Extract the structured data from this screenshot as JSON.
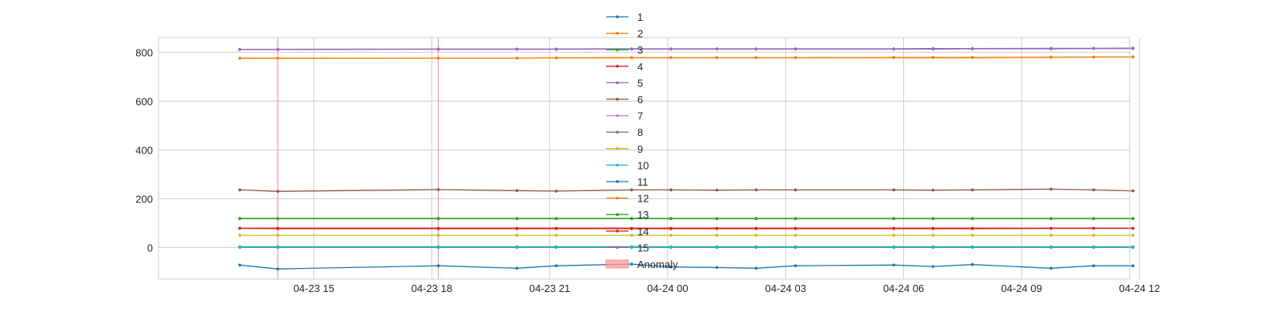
{
  "chart_data": {
    "type": "line",
    "title": "",
    "xlabel": "",
    "ylabel": "",
    "x_ticks": [
      "04-23 15",
      "04-23 18",
      "04-23 21",
      "04-24 00",
      "04-24 03",
      "04-24 06",
      "04-24 09",
      "04-24 12"
    ],
    "y_ticks": [
      0,
      200,
      400,
      600,
      800
    ],
    "ylim": [
      -130,
      860
    ],
    "xlim_hours_from_2023_04_23_1200": [
      -0.95,
      23.75
    ],
    "grid": true,
    "legend_position": "top-center",
    "x": [
      "04-23 13:07",
      "04-23 14:05",
      "04-23 18:10",
      "04-23 20:10",
      "04-23 21:10",
      "04-23 23:05",
      "04-24 00:05",
      "04-24 01:15",
      "04-24 02:15",
      "04-24 03:15",
      "04-24 05:45",
      "04-24 06:45",
      "04-24 07:45",
      "04-24 09:45",
      "04-24 10:50",
      "04-24 11:50"
    ],
    "series": [
      {
        "name": "1",
        "color": "#1f77b4",
        "values": [
          2,
          2,
          2,
          2,
          2,
          2,
          2,
          2,
          2,
          2,
          2,
          2,
          2,
          2,
          2,
          2
        ]
      },
      {
        "name": "2",
        "color": "#ff7f0e",
        "values": [
          775,
          775,
          776,
          776,
          777,
          778,
          778,
          778,
          778,
          778,
          778,
          778,
          778,
          779,
          780,
          781
        ]
      },
      {
        "name": "3",
        "color": "#2ca02c",
        "values": [
          118,
          118,
          118,
          118,
          118,
          118,
          118,
          118,
          118,
          118,
          118,
          118,
          118,
          118,
          118,
          118
        ]
      },
      {
        "name": "4",
        "color": "#d62728",
        "values": [
          78,
          77,
          77,
          77,
          77,
          77,
          77,
          77,
          77,
          77,
          77,
          77,
          77,
          78,
          78,
          78
        ]
      },
      {
        "name": "5",
        "color": "#9467bd",
        "values": [
          812,
          812,
          813,
          813,
          813,
          814,
          814,
          814,
          814,
          814,
          814,
          815,
          815,
          816,
          816,
          817
        ]
      },
      {
        "name": "6",
        "color": "#8c564b",
        "values": [
          236,
          230,
          237,
          233,
          231,
          236,
          236,
          235,
          236,
          236,
          236,
          235,
          236,
          239,
          236,
          232
        ]
      },
      {
        "name": "7",
        "color": "#e377c2",
        "values": [
          1,
          1,
          1,
          1,
          1,
          1,
          1,
          1,
          1,
          1,
          1,
          1,
          1,
          1,
          1,
          1
        ]
      },
      {
        "name": "8",
        "color": "#7f7f7f",
        "values": [
          3,
          3,
          3,
          3,
          3,
          3,
          3,
          3,
          3,
          3,
          3,
          3,
          3,
          3,
          3,
          3
        ]
      },
      {
        "name": "9",
        "color": "#bcbd22",
        "values": [
          50,
          50,
          50,
          50,
          50,
          50,
          50,
          50,
          50,
          50,
          50,
          50,
          50,
          50,
          50,
          50
        ]
      },
      {
        "name": "10",
        "color": "#17becf",
        "values": [
          0,
          0,
          0,
          0,
          0,
          0,
          0,
          0,
          0,
          0,
          0,
          0,
          0,
          0,
          0,
          0
        ]
      },
      {
        "name": "11",
        "color": "#1f77b4",
        "values": [
          -72,
          -88,
          -75,
          -85,
          -75,
          -68,
          -80,
          -82,
          -85,
          -75,
          -72,
          -78,
          -70,
          -85,
          -75,
          -75
        ]
      },
      {
        "name": "12",
        "color": "#ff7f0e",
        "values": [
          776,
          776,
          776,
          776,
          777,
          778,
          778,
          778,
          778,
          778,
          779,
          779,
          779,
          780,
          780,
          781
        ]
      },
      {
        "name": "13",
        "color": "#2ca02c",
        "values": [
          119,
          119,
          119,
          119,
          119,
          119,
          119,
          119,
          119,
          119,
          119,
          119,
          119,
          119,
          119,
          119
        ]
      },
      {
        "name": "14",
        "color": "#d62728",
        "values": [
          79,
          79,
          79,
          79,
          79,
          79,
          79,
          79,
          79,
          79,
          79,
          79,
          79,
          79,
          79,
          79
        ]
      },
      {
        "name": "15",
        "color": "#9467bd",
        "values": [
          811,
          811,
          812,
          812,
          812,
          813,
          813,
          813,
          813,
          813,
          813,
          813,
          814,
          814,
          815,
          815
        ]
      }
    ],
    "anomaly": {
      "name": "Anomaly",
      "color": "#ff9999",
      "x": [
        "04-23 14:05",
        "04-23 18:10"
      ]
    }
  }
}
